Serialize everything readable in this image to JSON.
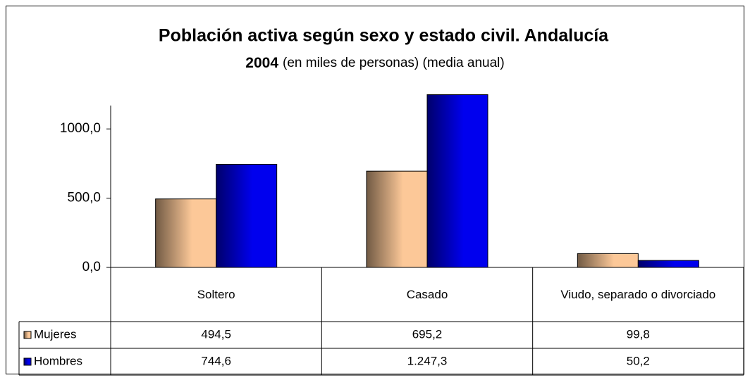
{
  "chart_data": {
    "type": "bar",
    "title": [
      "Población activa según sexo y estado civil.  Andalucía",
      "2004"
    ],
    "subtitle": "(en miles de personas) (media anual)",
    "categories": [
      "Soltero",
      "Casado",
      "Viudo, separado o divorciado"
    ],
    "series": [
      {
        "name": "Mujeres",
        "color": "#fcc898",
        "values": [
          494.5,
          695.2,
          99.8
        ],
        "value_labels": [
          "494,5",
          "695,2",
          "99,8"
        ]
      },
      {
        "name": "Hombres",
        "color": "#0000ee",
        "values": [
          744.6,
          1247.3,
          50.2
        ],
        "value_labels": [
          "744,6",
          "1.247,3",
          "50,2"
        ]
      }
    ],
    "ylim": [
      0,
      1250
    ],
    "yticks": [
      {
        "value": 0,
        "label": "0,0"
      },
      {
        "value": 500,
        "label": "500,0"
      },
      {
        "value": 1000,
        "label": "1000,0"
      }
    ],
    "grid": false
  }
}
